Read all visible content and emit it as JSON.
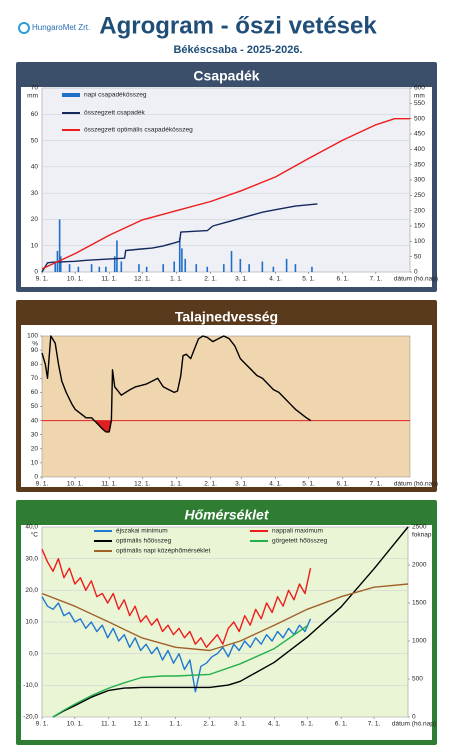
{
  "header": {
    "logo": "HungaroMet Zrt.",
    "title": "Agrogram - őszi vetések",
    "subtitle": "Békéscsaba - 2025-2026."
  },
  "chart_data": [
    {
      "type": "line",
      "title": "Csapadék",
      "y_unit": "mm",
      "y2_unit": "mm",
      "xlabel": "dátum (hó.nap)",
      "xlim": [
        0,
        334
      ],
      "xticks": [
        {
          "value": 0,
          "label": "9. 1."
        },
        {
          "value": 30,
          "label": "10. 1."
        },
        {
          "value": 61,
          "label": "11. 1."
        },
        {
          "value": 91,
          "label": "12. 1."
        },
        {
          "value": 122,
          "label": "1. 1."
        },
        {
          "value": 153,
          "label": "2. 1."
        },
        {
          "value": 181,
          "label": "3. 1."
        },
        {
          "value": 212,
          "label": "4. 1."
        },
        {
          "value": 242,
          "label": "5. 1."
        },
        {
          "value": 273,
          "label": "6. 1."
        },
        {
          "value": 303,
          "label": "7. 1."
        }
      ],
      "ylim": [
        0,
        70
      ],
      "yticks": [
        0,
        10,
        20,
        30,
        40,
        50,
        60,
        70
      ],
      "y2lim": [
        0,
        600
      ],
      "y2ticks": [
        0,
        50,
        100,
        150,
        200,
        250,
        300,
        350,
        400,
        450,
        500,
        550,
        600
      ],
      "grid": true,
      "series": [
        {
          "name": "napi csapadékösszeg",
          "type": "bar",
          "color": "#1f6fc6",
          "x": [
            12,
            14,
            16,
            17,
            25,
            33,
            45,
            52,
            58,
            66,
            68,
            72,
            88,
            95,
            110,
            120,
            125,
            127,
            130,
            140,
            150,
            165,
            172,
            180,
            188,
            200,
            210,
            222,
            230,
            245
          ],
          "values": [
            4,
            8,
            20,
            6,
            3,
            2,
            3,
            2,
            2,
            6,
            12,
            4,
            3,
            2,
            3,
            4,
            13,
            9,
            5,
            3,
            2,
            3,
            8,
            5,
            3,
            4,
            2,
            5,
            3,
            2
          ]
        },
        {
          "name": "összegzett csapadék",
          "type": "line",
          "axis": "y2",
          "color": "#14285e",
          "x": [
            0,
            5,
            10,
            30,
            40,
            60,
            75,
            76,
            90,
            100,
            110,
            120,
            125,
            126,
            150,
            155,
            170,
            180,
            190,
            200,
            215,
            230,
            250
          ],
          "values": [
            0,
            30,
            32,
            35,
            38,
            42,
            45,
            70,
            75,
            78,
            85,
            95,
            100,
            130,
            135,
            150,
            165,
            175,
            185,
            195,
            205,
            215,
            222
          ]
        },
        {
          "name": "összegzett optimális csapadékösszeg",
          "type": "line",
          "axis": "y2",
          "color": "#ee1c1c",
          "x": [
            0,
            30,
            61,
            91,
            122,
            153,
            181,
            212,
            242,
            273,
            303,
            320,
            334
          ],
          "values": [
            10,
            60,
            120,
            170,
            200,
            230,
            265,
            310,
            370,
            430,
            480,
            500,
            500
          ]
        }
      ]
    },
    {
      "type": "line",
      "title": "Talajnedvesség",
      "y_unit": "%",
      "xlabel": "dátum (hó.nap)",
      "xlim": [
        0,
        334
      ],
      "xticks": [
        {
          "value": 0,
          "label": "9. 1."
        },
        {
          "value": 30,
          "label": "10. 1."
        },
        {
          "value": 61,
          "label": "11. 1."
        },
        {
          "value": 91,
          "label": "12. 1."
        },
        {
          "value": 122,
          "label": "1. 1."
        },
        {
          "value": 153,
          "label": "2. 1."
        },
        {
          "value": 181,
          "label": "3. 1."
        },
        {
          "value": 212,
          "label": "4. 1."
        },
        {
          "value": 242,
          "label": "5. 1."
        },
        {
          "value": 273,
          "label": "6. 1."
        },
        {
          "value": 303,
          "label": "7. 1."
        }
      ],
      "ylim": [
        0,
        100
      ],
      "yticks": [
        0,
        10,
        20,
        30,
        40,
        50,
        60,
        70,
        80,
        90,
        100
      ],
      "threshold": 40,
      "threshold_color": "#e02020",
      "series": [
        {
          "type": "line",
          "color": "#000000",
          "x": [
            0,
            3,
            5,
            8,
            12,
            15,
            18,
            22,
            27,
            30,
            35,
            40,
            45,
            50,
            55,
            58,
            61,
            63,
            64,
            66,
            68,
            72,
            76,
            80,
            85,
            90,
            95,
            100,
            105,
            110,
            115,
            120,
            123,
            126,
            128,
            131,
            135,
            138,
            142,
            146,
            150,
            155,
            160,
            165,
            170,
            175,
            180,
            185,
            190,
            195,
            200,
            205,
            210,
            215,
            220,
            225,
            230,
            235,
            240,
            244
          ],
          "values": [
            88,
            80,
            70,
            100,
            95,
            80,
            68,
            60,
            52,
            48,
            45,
            42,
            42,
            38,
            34,
            32,
            32,
            40,
            76,
            64,
            62,
            58,
            60,
            62,
            64,
            65,
            66,
            68,
            70,
            64,
            62,
            60,
            61,
            72,
            86,
            87,
            84,
            90,
            98,
            100,
            99,
            96,
            98,
            100,
            98,
            93,
            84,
            80,
            76,
            72,
            70,
            66,
            62,
            60,
            56,
            52,
            48,
            45,
            42,
            40
          ]
        }
      ]
    },
    {
      "type": "line",
      "title": "Hőmérséklet",
      "y_unit": "°C",
      "y2_unit": "foknap",
      "xlabel": "dátum (hó.nap)",
      "xlim": [
        0,
        334
      ],
      "xticks": [
        {
          "value": 0,
          "label": "9. 1."
        },
        {
          "value": 30,
          "label": "10. 1."
        },
        {
          "value": 61,
          "label": "11. 1."
        },
        {
          "value": 91,
          "label": "12. 1."
        },
        {
          "value": 122,
          "label": "1. 1."
        },
        {
          "value": 153,
          "label": "2. 1."
        },
        {
          "value": 181,
          "label": "3. 1."
        },
        {
          "value": 212,
          "label": "4. 1."
        },
        {
          "value": 242,
          "label": "5. 1."
        },
        {
          "value": 273,
          "label": "6. 1."
        },
        {
          "value": 303,
          "label": "7. 1."
        }
      ],
      "ylim": [
        -20,
        40
      ],
      "yticks": [
        {
          "value": -20,
          "label": "-20,0"
        },
        {
          "value": -10,
          "label": "-10,0"
        },
        {
          "value": 0,
          "label": "0,0"
        },
        {
          "value": 10,
          "label": "10,0"
        },
        {
          "value": 20,
          "label": "20,0"
        },
        {
          "value": 30,
          "label": "30,0"
        },
        {
          "value": 40,
          "label": "40,0"
        }
      ],
      "y2lim": [
        0,
        2500
      ],
      "y2ticks": [
        0,
        500,
        1000,
        1500,
        2000,
        2500
      ],
      "grid": true,
      "series": [
        {
          "name": "éjszakai minimum",
          "type": "line",
          "color": "#1f78d1",
          "x": [
            0,
            5,
            10,
            15,
            20,
            25,
            30,
            35,
            40,
            45,
            50,
            55,
            60,
            65,
            70,
            75,
            80,
            85,
            90,
            95,
            100,
            105,
            110,
            115,
            120,
            125,
            130,
            135,
            140,
            145,
            150,
            155,
            160,
            165,
            170,
            175,
            180,
            185,
            190,
            195,
            200,
            205,
            210,
            215,
            220,
            225,
            230,
            235,
            240,
            245
          ],
          "values": [
            18,
            15,
            14,
            16,
            12,
            13,
            10,
            11,
            8,
            10,
            7,
            9,
            5,
            8,
            4,
            6,
            2,
            5,
            1,
            3,
            0,
            2,
            -2,
            1,
            -3,
            0,
            -5,
            -2,
            -12,
            -4,
            -3,
            -1,
            0,
            2,
            -1,
            3,
            1,
            4,
            2,
            5,
            3,
            6,
            4,
            7,
            5,
            8,
            6,
            9,
            7,
            11
          ]
        },
        {
          "name": "nappali maximum",
          "type": "line",
          "color": "#ee1c1c",
          "x": [
            0,
            5,
            10,
            15,
            20,
            25,
            30,
            35,
            40,
            45,
            50,
            55,
            60,
            65,
            70,
            75,
            80,
            85,
            90,
            95,
            100,
            105,
            110,
            115,
            120,
            125,
            130,
            135,
            140,
            145,
            150,
            155,
            160,
            165,
            170,
            175,
            180,
            185,
            190,
            195,
            200,
            205,
            210,
            215,
            220,
            225,
            230,
            235,
            240,
            245
          ],
          "values": [
            33,
            29,
            26,
            30,
            24,
            27,
            22,
            24,
            20,
            23,
            18,
            19,
            16,
            19,
            14,
            17,
            12,
            15,
            10,
            12,
            9,
            11,
            7,
            9,
            6,
            8,
            5,
            7,
            3,
            5,
            2,
            4,
            6,
            3,
            8,
            10,
            7,
            12,
            9,
            14,
            11,
            16,
            13,
            18,
            15,
            20,
            17,
            22,
            19,
            27
          ]
        },
        {
          "name": "optimális hőösszeg",
          "type": "line",
          "axis": "y2",
          "color": "#000000",
          "x": [
            10,
            20,
            30,
            45,
            61,
            75,
            91,
            122,
            153,
            170,
            181,
            212,
            242,
            273,
            303,
            334
          ],
          "values": [
            0,
            80,
            150,
            260,
            350,
            380,
            390,
            390,
            390,
            420,
            470,
            720,
            1050,
            1450,
            1950,
            2500
          ]
        },
        {
          "name": "görgetett hőösszeg",
          "type": "line",
          "axis": "y2",
          "color": "#22b04a",
          "x": [
            10,
            20,
            30,
            45,
            61,
            75,
            91,
            110,
            122,
            153,
            181,
            212,
            242
          ],
          "values": [
            0,
            90,
            170,
            280,
            380,
            450,
            520,
            540,
            540,
            560,
            700,
            900,
            1200
          ]
        },
        {
          "name": "optimális napi középhőmérséklet",
          "type": "line",
          "color": "#a0622a",
          "x": [
            0,
            30,
            61,
            91,
            122,
            153,
            181,
            212,
            242,
            273,
            303,
            334
          ],
          "values": [
            19,
            15,
            10,
            5,
            2,
            1,
            4,
            9,
            14,
            18,
            21,
            22
          ]
        }
      ]
    }
  ]
}
